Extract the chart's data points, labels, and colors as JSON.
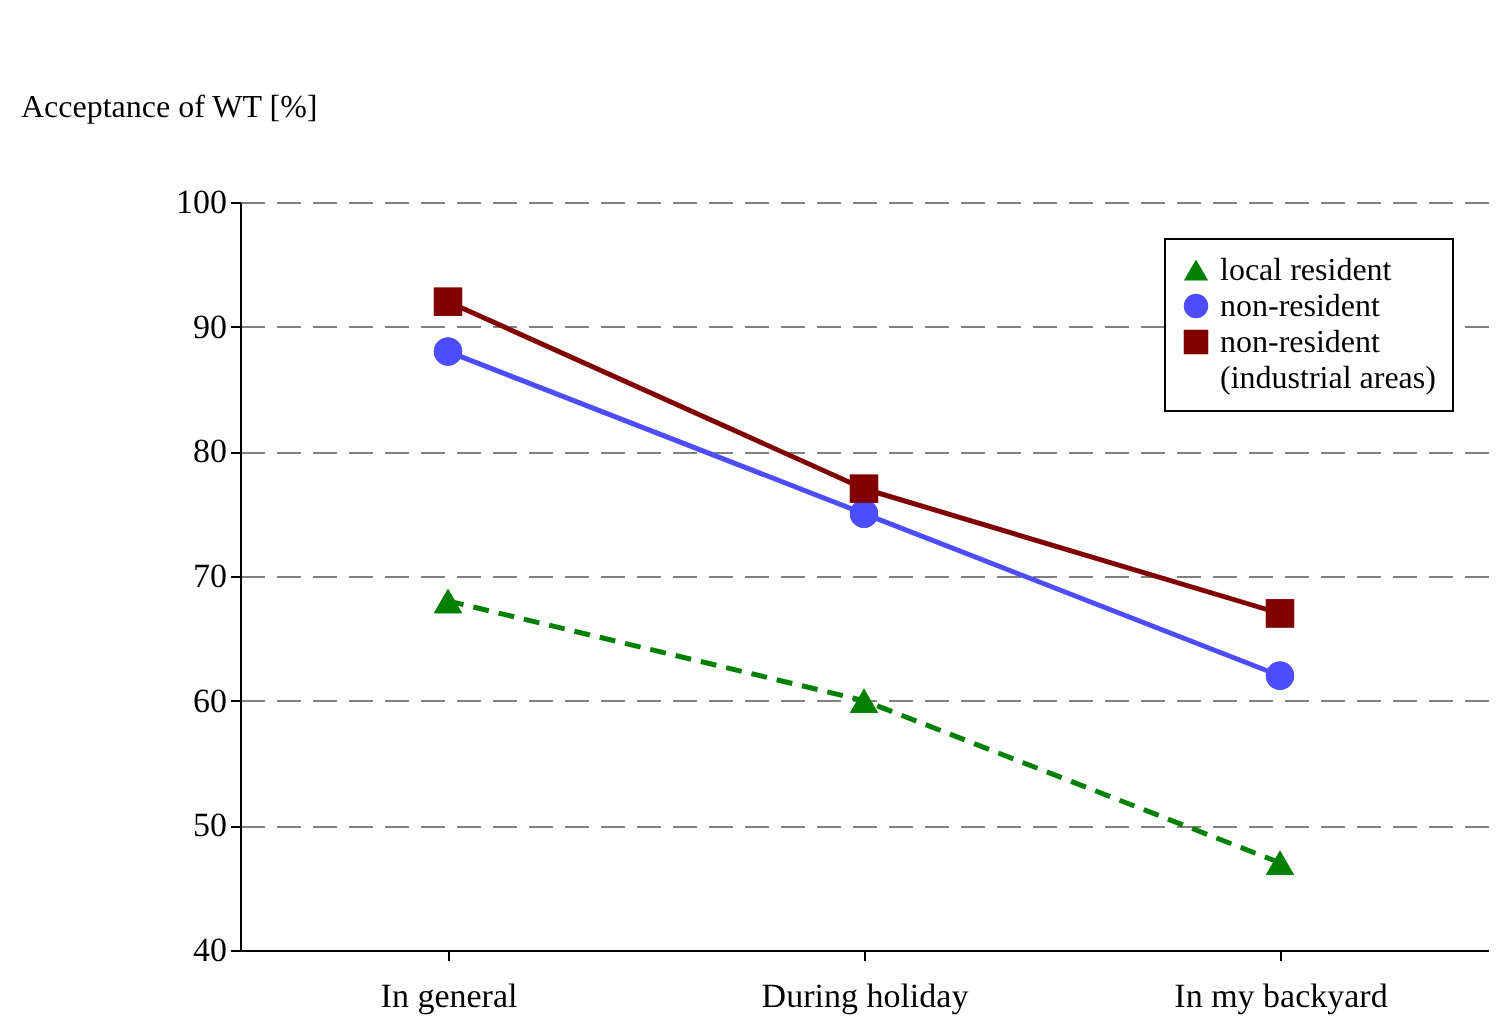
{
  "chart_data": {
    "type": "line",
    "ylabel": "Acceptance of WT [%]",
    "categories": [
      "In general",
      "During holiday",
      "In my backyard"
    ],
    "series": [
      {
        "name": "local resident",
        "color": "#008000",
        "values": [
          68,
          60,
          47
        ],
        "marker": "triangle",
        "line_style": "dashed"
      },
      {
        "name": "non-resident",
        "color": "#4d4dff",
        "values": [
          88,
          75,
          62
        ],
        "marker": "circle",
        "line_style": "solid"
      },
      {
        "name": "non-resident\n(industrial areas)",
        "color": "#800000",
        "values": [
          92,
          77,
          67
        ],
        "marker": "square",
        "line_style": "solid"
      }
    ],
    "ylim": [
      40,
      100
    ],
    "yticks": [
      40,
      50,
      60,
      70,
      80,
      90,
      100
    ],
    "grid": "y",
    "legend": "top right"
  }
}
